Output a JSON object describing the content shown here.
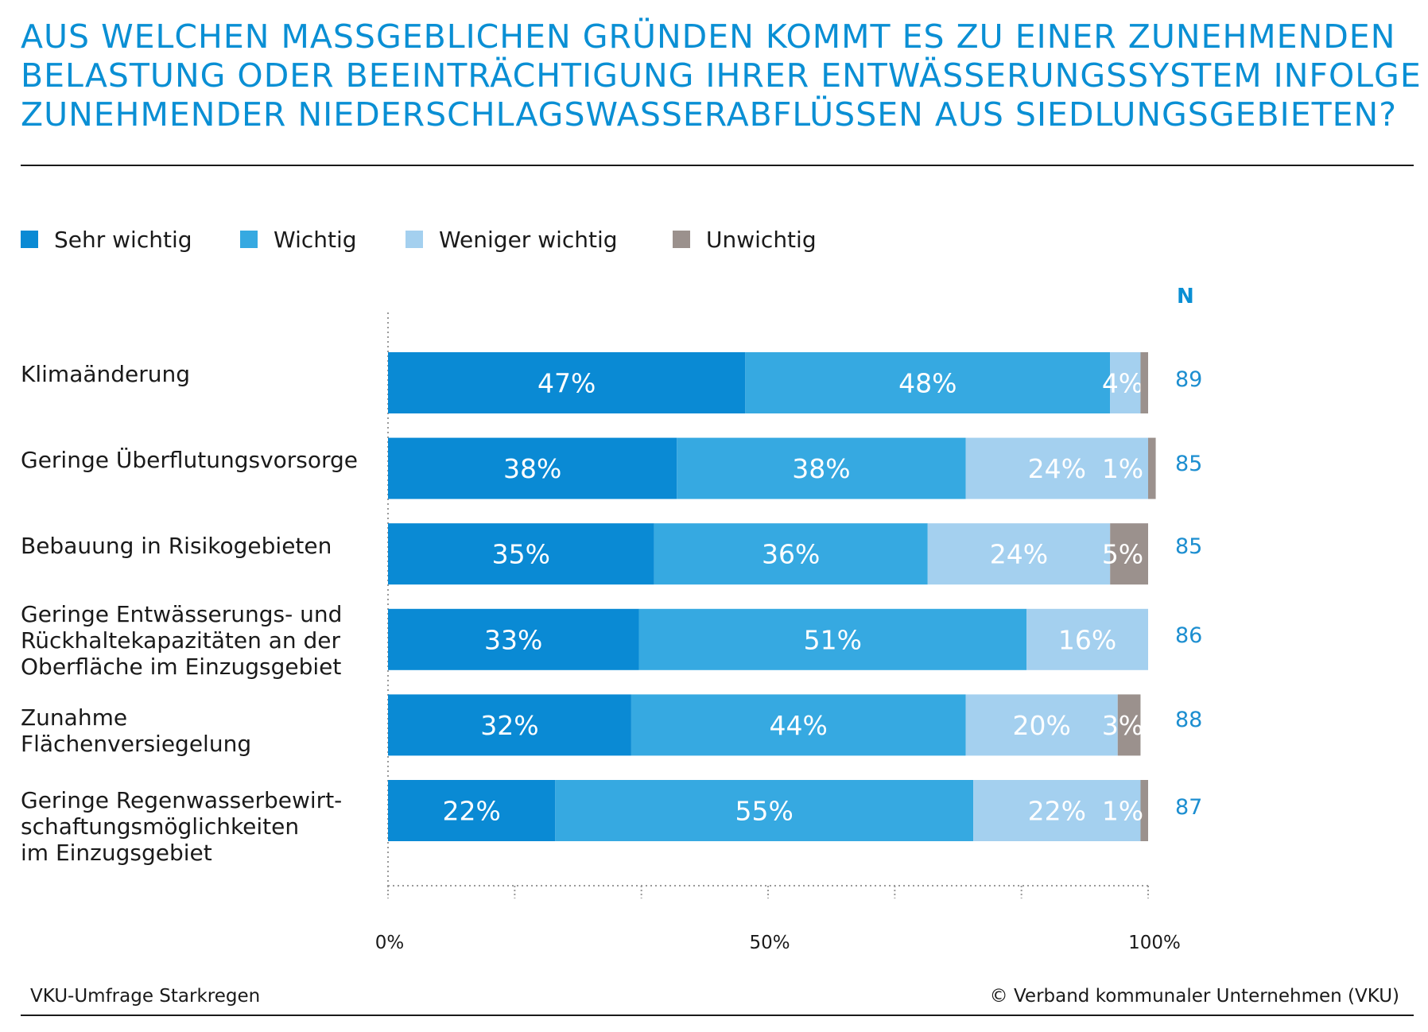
{
  "title_lines": [
    "AUS WELCHEN MASSGEBLICHEN GRÜNDEN KOMMT ES ZU EINER ZUNEHMENDEN",
    "BELASTUNG ODER BEEINTRÄCHTIGUNG IHRER ENTWÄSSERUNGSSYSTEM INFOLGE",
    "ZUNEHMENDER NIEDERSCHLAGSWASSERABFLÜSSEN AUS SIEDLUNGSGEBIETEN?"
  ],
  "n_header": "N",
  "footer": {
    "source": "VKU-Umfrage Starkregen",
    "copyright": "© Verband kommunaler Unternehmen (VKU)"
  },
  "colors": {
    "sehr_wichtig": "#0a8ad4",
    "wichtig": "#36a9e1",
    "weniger_wichtig": "#a4d0ef",
    "unwichtig": "#9b918d",
    "title": "#0a8fd4"
  },
  "chart_data": {
    "type": "bar",
    "orientation": "horizontal",
    "stacked": true,
    "categories": [
      "Klimaänderung",
      "Geringe Überflutungsvorsorge",
      "Bebauung in Risikogebieten",
      "Geringe Entwässerungs- und\nRückhaltekapazitäten an der\nOberfläche im Einzugsgebiet",
      "Zunahme\nFlächenversiegelung",
      "Geringe Regenwasserbewirt-\nschaftungsmöglichkeiten\nim Einzugsgebiet"
    ],
    "series": [
      {
        "name": "Sehr wichtig",
        "color": "#0a8ad4",
        "values": [
          47,
          38,
          35,
          33,
          32,
          22
        ],
        "labels": [
          "47%",
          "38%",
          "35%",
          "33%",
          "32%",
          "22%"
        ]
      },
      {
        "name": "Wichtig",
        "color": "#36a9e1",
        "values": [
          48,
          38,
          36,
          51,
          44,
          55
        ],
        "labels": [
          "48%",
          "38%",
          "36%",
          "51%",
          "44%",
          "55%"
        ]
      },
      {
        "name": "Weniger wichtig",
        "color": "#a4d0ef",
        "values": [
          4,
          24,
          24,
          16,
          20,
          22
        ],
        "labels": [
          "4%",
          "24%",
          "24%",
          "16%",
          "20%",
          "22%"
        ]
      },
      {
        "name": "Unwichtig",
        "color": "#9b918d",
        "values": [
          1,
          1,
          5,
          0,
          3,
          1
        ],
        "labels": [
          "",
          "1%",
          "5%",
          "",
          "3%",
          "1%"
        ]
      }
    ],
    "n_values": [
      "89",
      "85",
      "85",
      "86",
      "88",
      "87"
    ],
    "xlim": [
      0,
      100
    ],
    "x_ticks": [
      "0%",
      "50%",
      "100%"
    ],
    "legend_position": "top-left",
    "grid": false
  }
}
